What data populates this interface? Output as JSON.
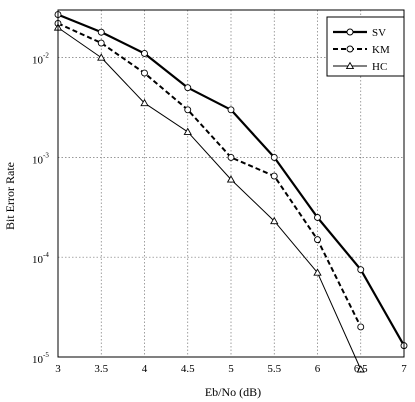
{
  "chart_data": {
    "type": "line",
    "title": "",
    "xlabel": "Eb/No (dB)",
    "ylabel": "Bit Error Rate",
    "xlim": [
      3,
      7
    ],
    "ylim": [
      1e-05,
      0.03
    ],
    "yscale": "log",
    "grid": true,
    "legend_position": "top-right",
    "x_ticks": [
      "3",
      "3.5",
      "4",
      "4.5",
      "5",
      "5.5",
      "6",
      "6.5",
      "7"
    ],
    "y_ticks": [
      {
        "base": "10",
        "exp": "-5",
        "value": 1e-05
      },
      {
        "base": "10",
        "exp": "-4",
        "value": 0.0001
      },
      {
        "base": "10",
        "exp": "-3",
        "value": 0.001
      },
      {
        "base": "10",
        "exp": "-2",
        "value": 0.01
      }
    ],
    "series": [
      {
        "name": "SV",
        "style": "solid-thick",
        "marker": "circle",
        "points": [
          [
            3,
            0.027
          ],
          [
            3.5,
            0.018
          ],
          [
            4,
            0.011
          ],
          [
            4.5,
            0.005
          ],
          [
            5,
            0.003
          ],
          [
            5.5,
            0.001
          ],
          [
            6,
            0.00025
          ],
          [
            6.5,
            7.5e-05
          ],
          [
            7,
            1.3e-05
          ]
        ]
      },
      {
        "name": "KM",
        "style": "dashed",
        "marker": "circle",
        "points": [
          [
            3,
            0.022
          ],
          [
            3.5,
            0.014
          ],
          [
            4,
            0.007
          ],
          [
            4.5,
            0.003
          ],
          [
            5,
            0.001
          ],
          [
            5.5,
            0.00065
          ],
          [
            6,
            0.00015
          ],
          [
            6.5,
            2e-05
          ]
        ]
      },
      {
        "name": "HC",
        "style": "solid-thin",
        "marker": "triangle",
        "points": [
          [
            3,
            0.02
          ],
          [
            3.5,
            0.01
          ],
          [
            4,
            0.0035
          ],
          [
            4.5,
            0.0018
          ],
          [
            5,
            0.0006
          ],
          [
            5.5,
            0.00023
          ],
          [
            6,
            7e-05
          ],
          [
            6.5,
            7.5e-06
          ]
        ]
      }
    ]
  }
}
